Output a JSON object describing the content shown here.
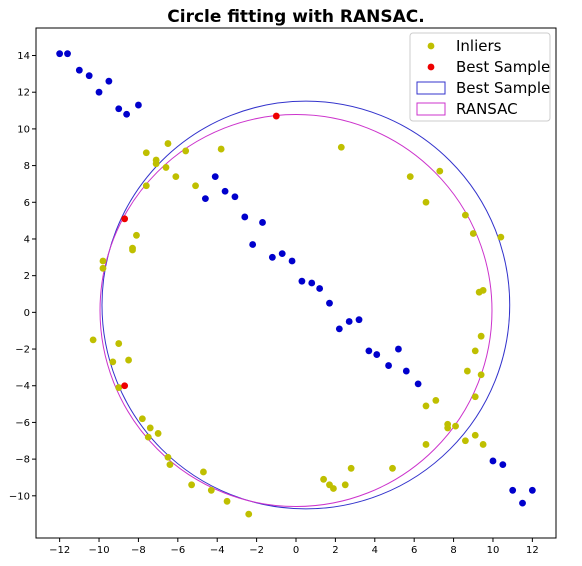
{
  "chart_data": {
    "type": "scatter",
    "title": "Circle fitting with RANSAC.",
    "xlabel": "",
    "ylabel": "",
    "xlim": [
      -13.2,
      13.2
    ],
    "ylim": [
      -12.3,
      15.5
    ],
    "x_ticks": [
      -12,
      -10,
      -8,
      -6,
      -4,
      -2,
      0,
      2,
      4,
      6,
      8,
      10,
      12
    ],
    "y_ticks": [
      -10,
      -8,
      -6,
      -4,
      -2,
      0,
      2,
      4,
      6,
      8,
      10,
      12,
      14
    ],
    "grid": false,
    "legend_position": "top-right",
    "colors": {
      "outliers": "#0000cc",
      "inliers": "#bfbf00",
      "best_sample": "#ee0000",
      "best_sample_circle": "#3333cc",
      "ransac_circle": "#cc33cc"
    },
    "series": [
      {
        "kind": "points",
        "points": [
          [
            -12.0,
            14.1
          ],
          [
            -11.6,
            14.1
          ],
          [
            -11.0,
            13.2
          ],
          [
            -10.5,
            12.9
          ],
          [
            -9.5,
            12.6
          ],
          [
            -10.0,
            12.0
          ],
          [
            -9.0,
            11.1
          ],
          [
            -8.6,
            10.8
          ],
          [
            -8.0,
            11.3
          ],
          [
            -4.1,
            7.4
          ],
          [
            -3.6,
            6.6
          ],
          [
            -3.1,
            6.3
          ],
          [
            -4.6,
            6.2
          ],
          [
            -2.6,
            5.2
          ],
          [
            -1.7,
            4.9
          ],
          [
            -2.2,
            3.7
          ],
          [
            -0.7,
            3.2
          ],
          [
            -1.2,
            3.0
          ],
          [
            -0.2,
            2.8
          ],
          [
            0.3,
            1.7
          ],
          [
            0.8,
            1.6
          ],
          [
            1.2,
            1.3
          ],
          [
            1.7,
            0.5
          ],
          [
            2.2,
            -0.9
          ],
          [
            2.7,
            -0.5
          ],
          [
            3.2,
            -0.4
          ],
          [
            3.7,
            -2.1
          ],
          [
            4.1,
            -2.3
          ],
          [
            5.2,
            -2.0
          ],
          [
            4.7,
            -2.9
          ],
          [
            5.6,
            -3.2
          ],
          [
            6.2,
            -3.9
          ],
          [
            10.0,
            -8.1
          ],
          [
            10.5,
            -8.3
          ],
          [
            11.0,
            -9.7
          ],
          [
            11.5,
            -10.4
          ],
          [
            12.0,
            -9.7
          ]
        ]
      },
      {
        "name": "Inliers",
        "kind": "points",
        "points": [
          [
            -6.5,
            9.2
          ],
          [
            -7.6,
            8.7
          ],
          [
            -7.1,
            8.3
          ],
          [
            -7.1,
            8.1
          ],
          [
            -5.6,
            8.8
          ],
          [
            -3.8,
            8.9
          ],
          [
            -6.6,
            7.9
          ],
          [
            -6.1,
            7.4
          ],
          [
            -7.6,
            6.9
          ],
          [
            -5.1,
            6.9
          ],
          [
            -8.1,
            4.2
          ],
          [
            -8.3,
            3.5
          ],
          [
            -8.3,
            3.4
          ],
          [
            -9.8,
            2.8
          ],
          [
            -9.8,
            2.4
          ],
          [
            -10.3,
            -1.5
          ],
          [
            -9.0,
            -1.7
          ],
          [
            -9.3,
            -2.7
          ],
          [
            -8.5,
            -2.6
          ],
          [
            -9.0,
            -4.1
          ],
          [
            -7.8,
            -5.8
          ],
          [
            -7.4,
            -6.3
          ],
          [
            -7.5,
            -6.8
          ],
          [
            -7.0,
            -6.6
          ],
          [
            -6.5,
            -7.9
          ],
          [
            -6.4,
            -8.3
          ],
          [
            -4.7,
            -8.7
          ],
          [
            -5.3,
            -9.4
          ],
          [
            -4.3,
            -9.7
          ],
          [
            -3.5,
            -10.3
          ],
          [
            -2.4,
            -11.0
          ],
          [
            2.3,
            9.0
          ],
          [
            5.8,
            7.4
          ],
          [
            7.3,
            7.7
          ],
          [
            6.6,
            6.0
          ],
          [
            8.6,
            5.3
          ],
          [
            9.0,
            4.3
          ],
          [
            10.4,
            4.1
          ],
          [
            9.3,
            1.1
          ],
          [
            9.5,
            1.2
          ],
          [
            9.4,
            -1.3
          ],
          [
            9.1,
            -2.1
          ],
          [
            9.4,
            -3.4
          ],
          [
            8.7,
            -3.2
          ],
          [
            9.1,
            -4.6
          ],
          [
            7.1,
            -4.8
          ],
          [
            6.6,
            -5.1
          ],
          [
            7.7,
            -6.1
          ],
          [
            7.7,
            -6.3
          ],
          [
            8.1,
            -6.2
          ],
          [
            6.6,
            -7.2
          ],
          [
            8.6,
            -7.0
          ],
          [
            9.1,
            -6.7
          ],
          [
            9.5,
            -7.2
          ],
          [
            4.9,
            -8.5
          ],
          [
            2.8,
            -8.5
          ],
          [
            1.4,
            -9.1
          ],
          [
            1.7,
            -9.4
          ],
          [
            1.9,
            -9.6
          ],
          [
            2.5,
            -9.4
          ]
        ]
      },
      {
        "name": "Best Sample",
        "kind": "points",
        "points": [
          [
            -1.0,
            10.7
          ],
          [
            -8.7,
            5.1
          ],
          [
            -8.7,
            -4.0
          ]
        ]
      },
      {
        "name": "Best Sample",
        "kind": "circle",
        "center": [
          0.5,
          0.4
        ],
        "radius": 10.35
      },
      {
        "name": "RANSAC",
        "kind": "circle",
        "center": [
          0.0,
          0.1
        ],
        "radius": 9.95
      }
    ]
  }
}
